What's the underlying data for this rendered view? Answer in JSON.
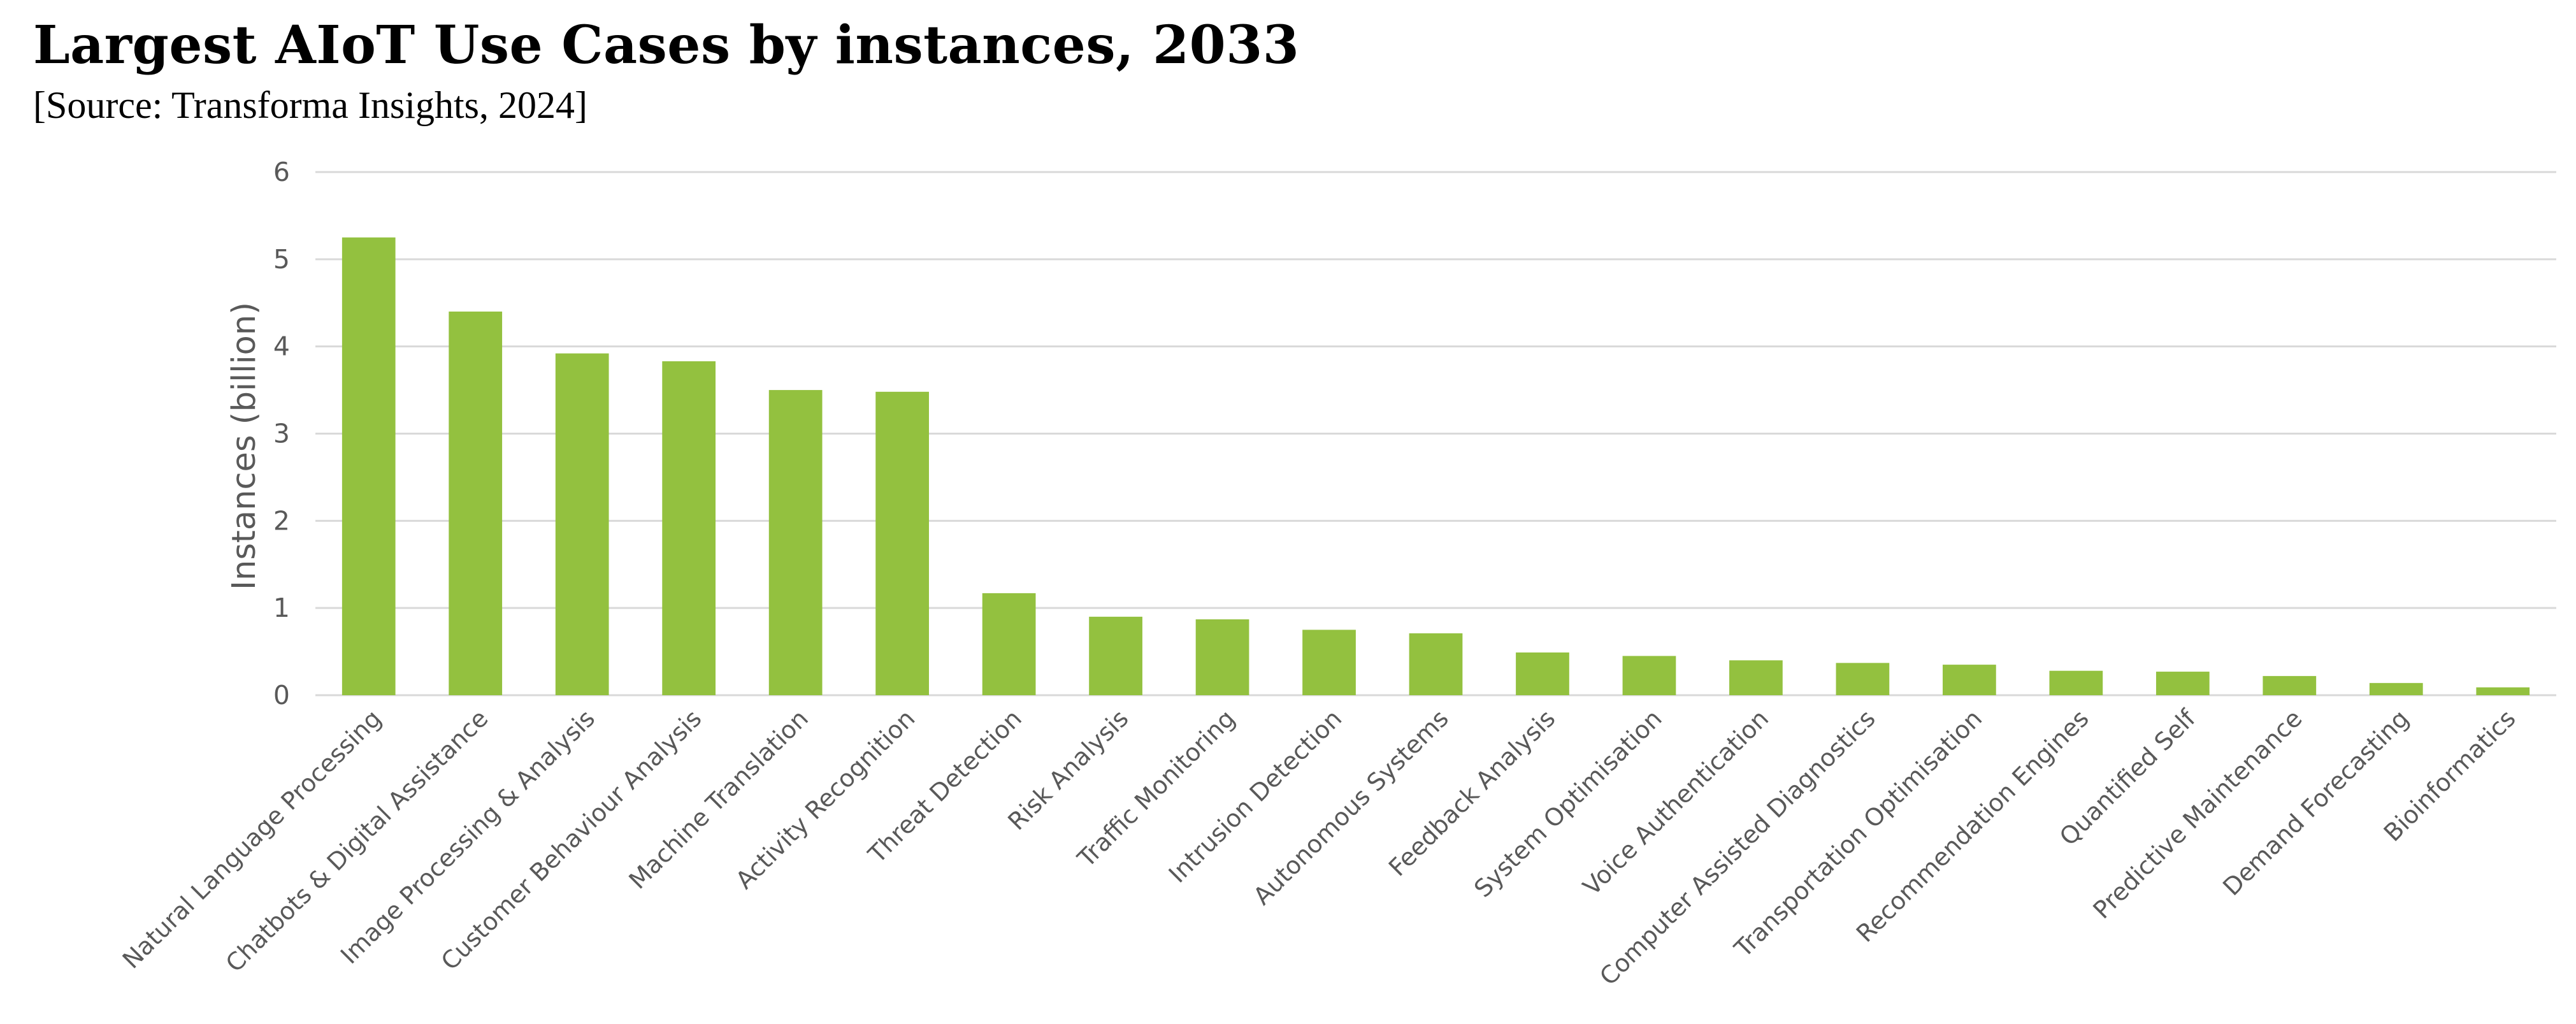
{
  "chart_data": {
    "type": "bar",
    "title": "Largest AIoT Use Cases by instances, 2033",
    "subtitle": "[Source: Transforma Insights, 2024]",
    "xlabel": "",
    "ylabel": "Instances (billion)",
    "ylim": [
      0,
      6
    ],
    "yticks": [
      "0",
      "1",
      "2",
      "3",
      "4",
      "5",
      "6"
    ],
    "grid": true,
    "legend": "none",
    "bar_color": "#93C13F",
    "grid_color": "#D9D9D9",
    "categories": [
      "Natural Language Processing",
      "Chatbots & Digital Assistance",
      "Image Processing & Analysis",
      "Customer Behaviour Analysis",
      "Machine Translation",
      "Activity Recognition",
      "Threat Detection",
      "Risk Analysis",
      "Traffic Monitoring",
      "Intrusion Detection",
      "Autonomous Systems",
      "Feedback Analysis",
      "System Optimisation",
      "Voice Authentication",
      "Computer Assisted Diagnostics",
      "Transportation Optimisation",
      "Recommendation Engines",
      "Quantified Self",
      "Predictive Maintenance",
      "Demand Forecasting",
      "Bioinformatics"
    ],
    "values": [
      5.25,
      4.4,
      3.92,
      3.83,
      3.5,
      3.48,
      1.17,
      0.9,
      0.87,
      0.75,
      0.71,
      0.49,
      0.45,
      0.4,
      0.37,
      0.35,
      0.28,
      0.27,
      0.22,
      0.14,
      0.09
    ]
  }
}
